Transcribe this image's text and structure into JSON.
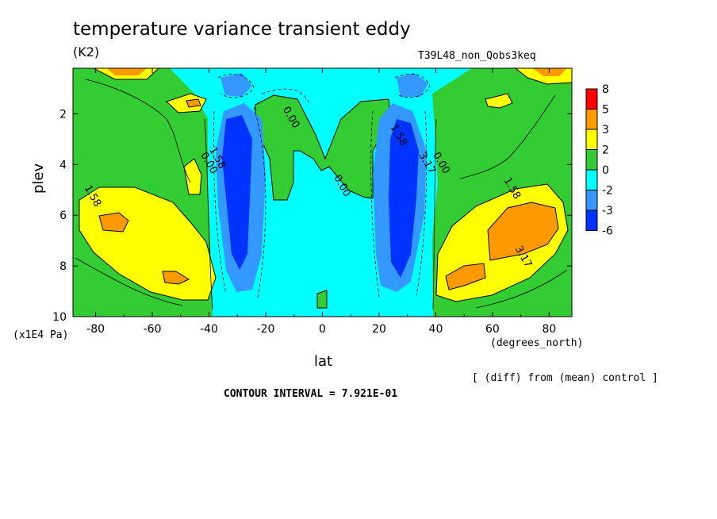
{
  "header": {
    "title": "temperature variance transient eddy",
    "units": "(K2)",
    "run": "T39L48_non_Qobs3keq"
  },
  "footer": {
    "x_units": "(degrees_north)",
    "y_units": "(x1E4 Pa)",
    "diff_note": "[ (diff) from (mean) control ]",
    "contour_interval": "CONTOUR INTERVAL = 7.921E-01"
  },
  "chart_data": {
    "type": "heatmap",
    "title": "temperature variance transient eddy",
    "xlabel": "lat",
    "ylabel": "plev",
    "xlim": [
      -88,
      88
    ],
    "ylim": [
      0.2,
      10
    ],
    "y_inverted": true,
    "xticks": [
      -80,
      -60,
      -40,
      -20,
      0,
      20,
      40,
      60,
      80
    ],
    "xtick_labels": [
      "-80",
      "-60",
      "-40",
      "-20",
      "0",
      "20",
      "40",
      "60",
      "80"
    ],
    "yticks": [
      2,
      4,
      6,
      8,
      10
    ],
    "ytick_labels": [
      "2",
      "4",
      "6",
      "8",
      "10"
    ],
    "colorbar": {
      "levels": [
        "8",
        "5",
        "3",
        "2",
        "0",
        "-2",
        "-3",
        "-6"
      ],
      "colors": [
        "#ff0000",
        "#ff9900",
        "#ffff00",
        "#33cc33",
        "#00ffff",
        "#3399ff",
        "#0033ff"
      ]
    },
    "contour_labels": [
      {
        "text": "0.00",
        "x": -12,
        "y": 2.2
      },
      {
        "text": "0.00",
        "x": 6,
        "y": 4.9
      },
      {
        "text": "0.00",
        "x": -41,
        "y": 4.0
      },
      {
        "text": "1.58",
        "x": -38,
        "y": 3.8
      },
      {
        "text": "1.58",
        "x": 26,
        "y": 2.9
      },
      {
        "text": "3.17",
        "x": 36,
        "y": 4.0
      },
      {
        "text": "0.00",
        "x": 41,
        "y": 4.0
      },
      {
        "text": "1.58",
        "x": -82,
        "y": 5.3
      },
      {
        "text": "1.58",
        "x": 66,
        "y": 5.0
      },
      {
        "text": "3.17",
        "x": 70,
        "y": 7.7
      }
    ],
    "regions": [
      {
        "name": "sh-midlat-positive",
        "level": 2,
        "center": [
          -68,
          7.0
        ]
      },
      {
        "name": "sh-midlat-max",
        "level": 3,
        "center": [
          -76,
          6.3
        ]
      },
      {
        "name": "sh-subtropical-min",
        "level": -6,
        "center": [
          -32,
          5.5
        ]
      },
      {
        "name": "nh-subtropical-min",
        "level": -6,
        "center": [
          32,
          5.5
        ]
      },
      {
        "name": "nh-midlat-positive",
        "level": 2,
        "center": [
          68,
          7.0
        ]
      },
      {
        "name": "nh-midlat-max",
        "level": 3,
        "center": [
          72,
          6.5
        ]
      },
      {
        "name": "equatorial-positive",
        "level": 0,
        "center": [
          -5,
          3.0
        ]
      }
    ]
  }
}
